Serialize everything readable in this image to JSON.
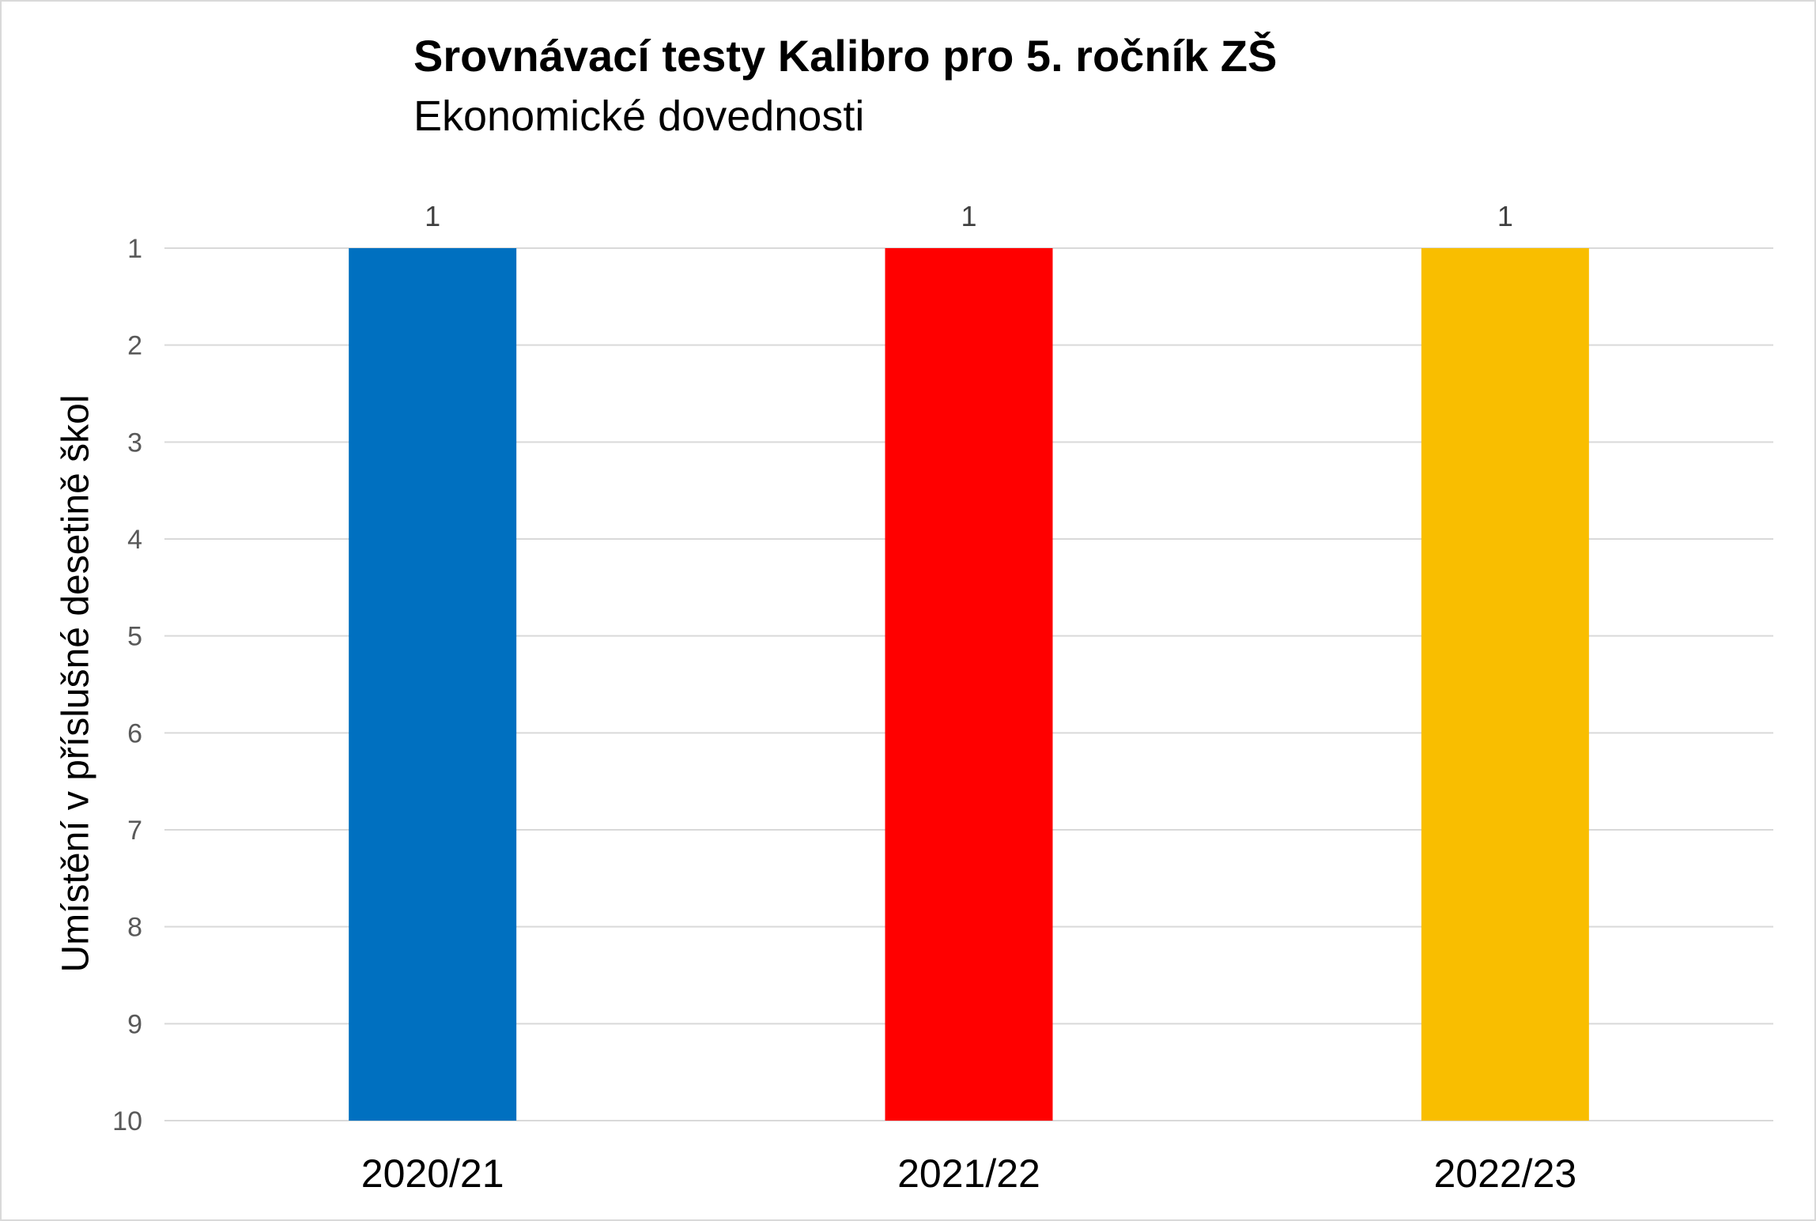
{
  "chart_data": {
    "type": "bar",
    "title": "Srovnávací testy Kalibro pro 5. ročník ZŠ",
    "subtitle": "Ekonomické dovednosti",
    "ylabel": "Umístění v příslušné desetině škol",
    "xlabel": "",
    "categories": [
      "2020/21",
      "2021/22",
      "2022/23"
    ],
    "values": [
      1,
      1,
      1
    ],
    "data_labels": [
      "1",
      "1",
      "1"
    ],
    "colors": [
      "#0070C0",
      "#FF0000",
      "#F9BE00"
    ],
    "y_ticks": [
      "1",
      "2",
      "3",
      "4",
      "5",
      "6",
      "7",
      "8",
      "9",
      "10"
    ],
    "ylim": [
      1,
      10
    ],
    "y_axis_reversed": true,
    "grid": true,
    "legend": "none",
    "gridline_color": "#d9d9d9",
    "tick_label_color": "#595959"
  }
}
